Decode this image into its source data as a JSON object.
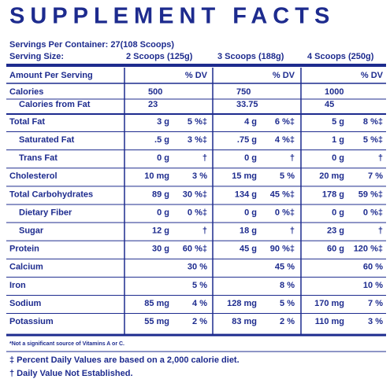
{
  "title": "SUPPLEMENT FACTS",
  "servings_per_container": "Servings Per Container: 27(108 Scoops)",
  "serving_size": {
    "label": "Serving Size:",
    "columns": [
      "2 Scoops (125g)",
      "3 Scoops (188g)",
      "4 Scoops (250g)"
    ]
  },
  "table": {
    "header": {
      "label": "Amount Per Serving",
      "dv": [
        "% DV",
        "% DV",
        "% DV"
      ]
    },
    "rows": [
      {
        "label": "Calories",
        "cells": [
          [
            "500",
            null
          ],
          [
            "750",
            null
          ],
          [
            "1000",
            null
          ]
        ]
      },
      {
        "label": "Calories from Fat",
        "indent": true,
        "cells": [
          [
            "23",
            null
          ],
          [
            "33.75",
            null
          ],
          [
            "45",
            null
          ]
        ]
      },
      {
        "label": "Total Fat",
        "cells": [
          [
            "3 g",
            "5 %‡"
          ],
          [
            "4 g",
            "6 %‡"
          ],
          [
            "5 g",
            "8 %‡"
          ]
        ]
      },
      {
        "label": "Saturated Fat",
        "indent": true,
        "cells": [
          [
            ".5 g",
            "3 %‡"
          ],
          [
            ".75 g",
            "4 %‡"
          ],
          [
            "1 g",
            "5 %‡"
          ]
        ]
      },
      {
        "label": "Trans Fat",
        "indent": true,
        "cells": [
          [
            "0 g",
            "†"
          ],
          [
            "0 g",
            "†"
          ],
          [
            "0 g",
            "†"
          ]
        ]
      },
      {
        "label": "Cholesterol",
        "cells": [
          [
            "10 mg",
            "3 %"
          ],
          [
            "15 mg",
            "5 %"
          ],
          [
            "20 mg",
            "7 %"
          ]
        ]
      },
      {
        "label": "Total Carbohydrates",
        "cells": [
          [
            "89 g",
            "30 %‡"
          ],
          [
            "134 g",
            "45 %‡"
          ],
          [
            "178 g",
            "59 %‡"
          ]
        ]
      },
      {
        "label": "Dietary Fiber",
        "indent": true,
        "cells": [
          [
            "0 g",
            "0 %‡"
          ],
          [
            "0 g",
            "0 %‡"
          ],
          [
            "0 g",
            "0 %‡"
          ]
        ]
      },
      {
        "label": "Sugar",
        "indent": true,
        "cells": [
          [
            "12 g",
            "†"
          ],
          [
            "18 g",
            "†"
          ],
          [
            "23 g",
            "†"
          ]
        ]
      },
      {
        "label": "Protein",
        "cells": [
          [
            "30 g",
            "60 %‡"
          ],
          [
            "45 g",
            "90 %‡"
          ],
          [
            "60 g",
            "120 %‡"
          ]
        ]
      },
      {
        "label": "Calcium",
        "cells": [
          [
            null,
            "30 %"
          ],
          [
            null,
            "45 %"
          ],
          [
            null,
            "60 %"
          ]
        ]
      },
      {
        "label": "Iron",
        "cells": [
          [
            null,
            "5 %"
          ],
          [
            null,
            "8 %"
          ],
          [
            null,
            "10 %"
          ]
        ]
      },
      {
        "label": "Sodium",
        "cells": [
          [
            "85 mg",
            "4 %"
          ],
          [
            "128 mg",
            "5 %"
          ],
          [
            "170 mg",
            "7 %"
          ]
        ]
      },
      {
        "label": "Potassium",
        "cells": [
          [
            "55 mg",
            "2 %"
          ],
          [
            "83 mg",
            "2 %"
          ],
          [
            "110 mg",
            "3 %"
          ]
        ]
      }
    ]
  },
  "footnotes": [
    "*Not a significant source of Vitamins A or C.",
    "‡ Percent Daily Values are based on a 2,000 calorie diet.",
    "† Daily Value Not Established."
  ]
}
